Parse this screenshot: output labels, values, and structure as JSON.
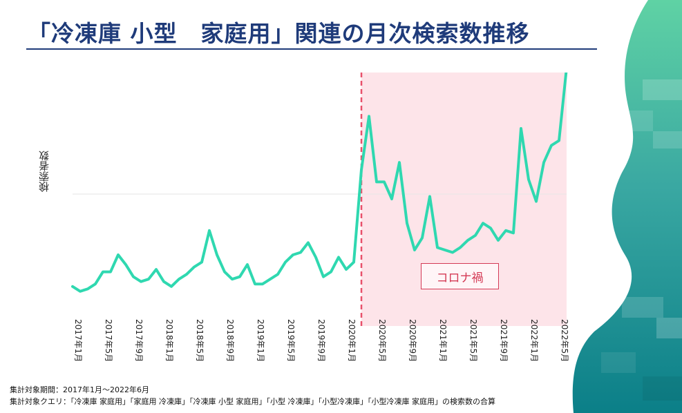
{
  "title": "「冷凍庫 小型　家庭用」関連の月次検索数推移",
  "covid_label": "コロナ禍",
  "notes": {
    "period": "集計対象期間：2017年1月～2022年6月",
    "queries": "集計対象クエリ：「冷凍庫 家庭用」「家庭用 冷凍庫」「冷凍庫 小型 家庭用」「小型 冷凍庫」「小型冷凍庫」「小型冷凍庫 家庭用」の検索数の合算"
  },
  "colors": {
    "title": "#1f3b7a",
    "line": "#2fd8b0",
    "covid_shade": "#fde4e9",
    "covid_line": "#e8506a",
    "grid": "#e6e6e6"
  },
  "chart_data": {
    "type": "line",
    "title": "",
    "xlabel": "",
    "ylabel": "検索者数",
    "x_tick_labels": [
      "2017年1月",
      "2017年5月",
      "2017年9月",
      "2018年1月",
      "2018年5月",
      "2018年9月",
      "2019年1月",
      "2019年5月",
      "2019年9月",
      "2020年1月",
      "2020年5月",
      "2020年9月",
      "2021年1月",
      "2021年5月",
      "2021年9月",
      "2022年1月",
      "2022年5月"
    ],
    "x_start": "2017-01",
    "x_end": "2022-06",
    "ylim": [
      0,
      100
    ],
    "grid": "horizontal",
    "covid_start": "2020-03",
    "covid_end": "2022-06",
    "series": [
      {
        "values": [
          12,
          10,
          11,
          13,
          18,
          18,
          25,
          21,
          16,
          14,
          15,
          19,
          14,
          12,
          15,
          17,
          20,
          22,
          35,
          25,
          18,
          15,
          16,
          21,
          13,
          13,
          15,
          17,
          22,
          25,
          26,
          30,
          24,
          16,
          18,
          24,
          19,
          22,
          60,
          82,
          55,
          55,
          48,
          63,
          38,
          27,
          32,
          49,
          28,
          27,
          26,
          28,
          31,
          33,
          38,
          36,
          31,
          35,
          34,
          77,
          56,
          47,
          63,
          70,
          72,
          102
        ]
      }
    ]
  }
}
